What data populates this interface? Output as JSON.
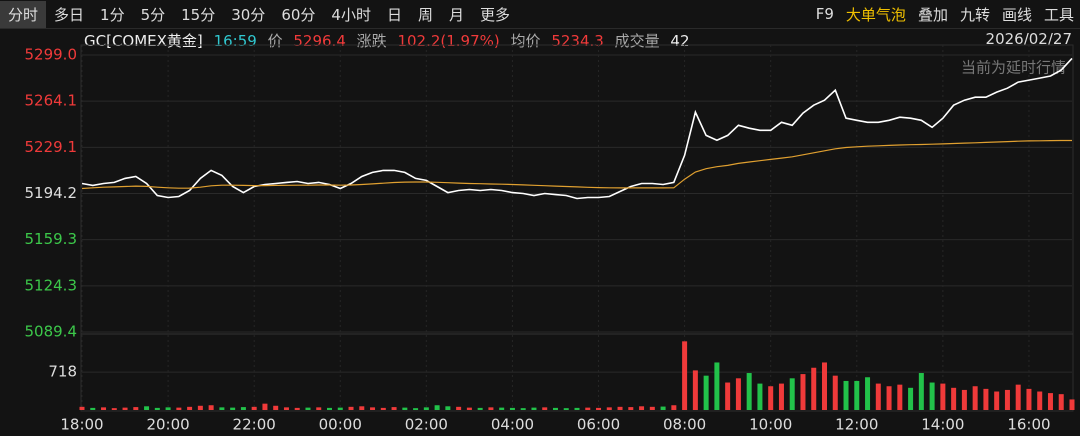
{
  "toolbar": {
    "tabs": [
      "分时",
      "多日",
      "1分",
      "5分",
      "15分",
      "30分",
      "60分",
      "4小时",
      "日",
      "周",
      "月",
      "更多"
    ],
    "right_tools": [
      "F9",
      "大单气泡",
      "叠加",
      "九转",
      "画线",
      "工具"
    ]
  },
  "header": {
    "symbol": "GC[COMEX黄金]",
    "time": "16:59",
    "price_label": "价",
    "price": "5296.4",
    "change_label": "涨跌",
    "change": "102.2(1.97%)",
    "avg_label": "均价",
    "avg": "5234.3",
    "volume_label": "成交量",
    "volume": "42",
    "date": "2026/02/27"
  },
  "chart_data": {
    "type": "line",
    "annotation": "当前为延时行情",
    "categories": [
      "18:00",
      null,
      null,
      null,
      null,
      null,
      null,
      null,
      "20:00",
      null,
      null,
      null,
      null,
      null,
      null,
      null,
      "22:00",
      null,
      null,
      null,
      null,
      null,
      null,
      null,
      "00:00",
      null,
      null,
      null,
      null,
      null,
      null,
      null,
      "02:00",
      null,
      null,
      null,
      null,
      null,
      null,
      null,
      "04:00",
      null,
      null,
      null,
      null,
      null,
      null,
      null,
      "06:00",
      null,
      null,
      null,
      null,
      null,
      null,
      null,
      "08:00",
      null,
      null,
      null,
      null,
      null,
      null,
      null,
      "10:00",
      null,
      null,
      null,
      null,
      null,
      null,
      null,
      "12:00",
      null,
      null,
      null,
      null,
      null,
      null,
      null,
      "14:00",
      null,
      null,
      null,
      null,
      null,
      null,
      null,
      "16:00",
      null,
      null,
      null,
      null
    ],
    "ylim": [
      5089.4,
      5299.0
    ],
    "yticks": [
      {
        "value": 5299.0,
        "label": "5299.0"
      },
      5264.1,
      5229.1,
      5194.2,
      5159.3,
      5124.3,
      5089.4
    ],
    "y2lim": [
      0,
      1420
    ],
    "y2ticks": [
      718
    ],
    "grid": true,
    "up_color": "#f03a3a",
    "down_color": "#22c24a",
    "series": [
      {
        "name": "价",
        "color": "#ffffff",
        "values": [
          5201.8,
          5200.3,
          5201.8,
          5202.6,
          5205.6,
          5207.1,
          5201.8,
          5192.7,
          5191.2,
          5191.9,
          5196.5,
          5205.6,
          5211.7,
          5207.9,
          5199.5,
          5194.9,
          5199.5,
          5201.0,
          5201.8,
          5202.6,
          5203.3,
          5201.8,
          5202.6,
          5201.0,
          5198.0,
          5201.8,
          5207.1,
          5210.2,
          5211.7,
          5211.7,
          5210.2,
          5205.6,
          5204.1,
          5199.5,
          5194.9,
          5196.5,
          5197.2,
          5196.5,
          5197.2,
          5196.5,
          5194.9,
          5194.2,
          5192.7,
          5194.2,
          5193.4,
          5192.7,
          5190.4,
          5191.2,
          5191.2,
          5191.9,
          5195.7,
          5199.5,
          5201.8,
          5201.8,
          5201.0,
          5202.6,
          5223.1,
          5255.7,
          5238.2,
          5234.5,
          5238.2,
          5245.8,
          5243.6,
          5242.0,
          5242.0,
          5248.1,
          5245.8,
          5255.0,
          5261.0,
          5264.8,
          5272.4,
          5251.2,
          5249.6,
          5248.1,
          5248.1,
          5249.6,
          5251.9,
          5251.2,
          5249.6,
          5244.3,
          5251.2,
          5261.0,
          5264.8,
          5267.1,
          5267.1,
          5270.9,
          5273.9,
          5278.5,
          5280.0,
          5281.5,
          5283.1,
          5287.6,
          5296.4
        ]
      },
      {
        "name": "均价",
        "color": "#e0a030",
        "values": [
          5198.0,
          5198.5,
          5199.0,
          5199.2,
          5199.5,
          5199.8,
          5199.6,
          5199.0,
          5198.5,
          5198.2,
          5198.3,
          5199.0,
          5200.0,
          5200.5,
          5200.5,
          5200.3,
          5200.2,
          5200.2,
          5200.3,
          5200.4,
          5200.5,
          5200.5,
          5200.6,
          5200.6,
          5200.5,
          5200.6,
          5201.0,
          5201.5,
          5202.0,
          5202.5,
          5202.8,
          5202.9,
          5202.9,
          5202.7,
          5202.4,
          5202.1,
          5201.8,
          5201.6,
          5201.4,
          5201.2,
          5201.0,
          5200.7,
          5200.4,
          5200.1,
          5199.8,
          5199.5,
          5199.2,
          5198.9,
          5198.7,
          5198.5,
          5198.4,
          5198.4,
          5198.4,
          5198.4,
          5198.4,
          5198.5,
          5205.0,
          5210.5,
          5213.0,
          5214.5,
          5215.5,
          5217.0,
          5218.0,
          5219.0,
          5220.0,
          5221.0,
          5222.0,
          5223.5,
          5225.0,
          5226.5,
          5228.0,
          5229.0,
          5229.5,
          5230.0,
          5230.3,
          5230.6,
          5230.9,
          5231.1,
          5231.3,
          5231.5,
          5231.7,
          5232.0,
          5232.3,
          5232.6,
          5232.9,
          5233.2,
          5233.5,
          5233.8,
          5234.0,
          5234.1,
          5234.2,
          5234.3,
          5234.3
        ]
      },
      {
        "name": "成交量",
        "type": "bar",
        "axis": "y2",
        "values": [
          60,
          40,
          50,
          35,
          45,
          55,
          70,
          40,
          50,
          45,
          60,
          80,
          90,
          50,
          45,
          55,
          60,
          120,
          80,
          50,
          40,
          45,
          50,
          40,
          45,
          60,
          70,
          50,
          40,
          55,
          45,
          35,
          50,
          90,
          70,
          60,
          45,
          40,
          50,
          45,
          40,
          35,
          45,
          50,
          40,
          35,
          40,
          45,
          40,
          50,
          60,
          55,
          70,
          60,
          65,
          90,
          1300,
          750,
          650,
          900,
          520,
          600,
          700,
          500,
          450,
          500,
          600,
          680,
          800,
          900,
          650,
          550,
          550,
          620,
          500,
          450,
          480,
          420,
          700,
          520,
          500,
          420,
          380,
          450,
          400,
          350,
          380,
          480,
          400,
          350,
          320,
          300,
          200
        ]
      }
    ]
  }
}
